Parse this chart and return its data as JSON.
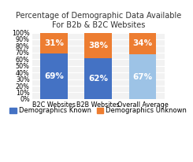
{
  "title": "Percentage of Demographic Data Available\nFor B2b & B2C Websites",
  "categories": [
    "B2C Websites",
    "B2B Websites",
    "Overall Average"
  ],
  "known": [
    69,
    62,
    67
  ],
  "unknown": [
    31,
    38,
    34
  ],
  "known_labels": [
    "69%",
    "62%",
    "67%"
  ],
  "unknown_labels": [
    "31%",
    "38%",
    "34%"
  ],
  "color_known": "#4472c4",
  "color_unknown": "#ed7d31",
  "color_known_3": "#9dc3e6",
  "legend_known": "Demographics Known",
  "legend_unknown": "Demographics Unknown",
  "ylim": [
    0,
    100
  ],
  "yticks": [
    0,
    10,
    20,
    30,
    40,
    50,
    60,
    70,
    80,
    90,
    100
  ],
  "ytick_labels": [
    "0%",
    "10%",
    "20%",
    "30%",
    "40%",
    "50%",
    "60%",
    "70%",
    "80%",
    "90%",
    "100%"
  ],
  "background_color": "#ffffff",
  "plot_bg_color": "#f2f2f2",
  "title_fontsize": 7.0,
  "label_fontsize": 7.5,
  "tick_fontsize": 5.8,
  "legend_fontsize": 6.0
}
